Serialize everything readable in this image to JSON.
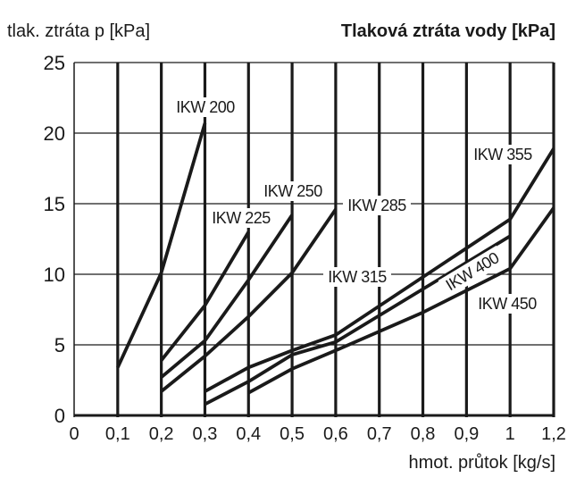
{
  "chart_data": {
    "type": "line",
    "title": "Tlaková ztráta vody [kPa]",
    "ylabel": "tlak. ztráta p [kPa]",
    "xlabel": "hmot. průtok [kg/s]",
    "x_ticks": [
      "0",
      "0,1",
      "0,2",
      "0,3",
      "0,4",
      "0,5",
      "0,6",
      "0,7",
      "0,8",
      "0,9",
      "1",
      "1,2"
    ],
    "x_values": [
      0,
      0.1,
      0.2,
      0.3,
      0.4,
      0.5,
      0.6,
      0.7,
      0.8,
      0.9,
      1.0,
      1.2
    ],
    "y_ticks": [
      "0",
      "5",
      "10",
      "15",
      "20",
      "25"
    ],
    "ylim": [
      0,
      25
    ],
    "grid": true,
    "series": [
      {
        "name": "IKW 200",
        "x": [
          0.1,
          0.2,
          0.3
        ],
        "y": [
          3.4,
          10.1,
          20.7
        ]
      },
      {
        "name": "IKW 225",
        "x": [
          0.2,
          0.3,
          0.4
        ],
        "y": [
          3.9,
          7.8,
          13.0
        ]
      },
      {
        "name": "IKW 250",
        "x": [
          0.2,
          0.3,
          0.4,
          0.5
        ],
        "y": [
          2.7,
          5.3,
          9.6,
          14.2
        ]
      },
      {
        "name": "IKW 285",
        "x": [
          0.2,
          0.3,
          0.4,
          0.5,
          0.6
        ],
        "y": [
          1.7,
          4.2,
          7.0,
          10.1,
          14.6
        ]
      },
      {
        "name": "IKW 355",
        "x": [
          0.3,
          0.4,
          0.5,
          0.6,
          1.0,
          1.2
        ],
        "y": [
          1.7,
          3.4,
          4.6,
          5.7,
          13.9,
          18.9
        ]
      },
      {
        "name": "IKW 400",
        "x": [
          0.3,
          0.4,
          0.5,
          0.6,
          1.0
        ],
        "y": [
          0.8,
          2.4,
          4.3,
          5.2,
          12.7
        ]
      },
      {
        "name": "IKW 450",
        "x": [
          0.4,
          0.5,
          0.6,
          0.8,
          1.0,
          1.2
        ],
        "y": [
          1.6,
          3.3,
          4.6,
          7.3,
          10.4,
          14.7
        ]
      }
    ],
    "annotations": [
      "IKW 315"
    ]
  }
}
